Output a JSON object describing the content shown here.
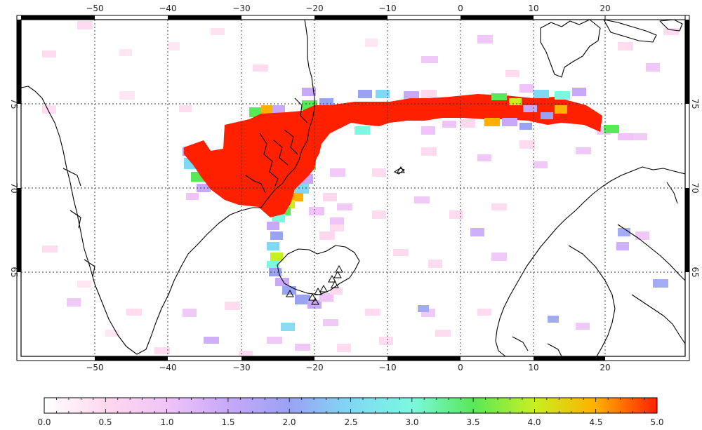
{
  "map": {
    "lon_labels_top": [
      "−50",
      "−40",
      "−30",
      "−20",
      "−10",
      "0",
      "10",
      "20"
    ],
    "lon_labels_bottom": [
      "−50",
      "−40",
      "−30",
      "−20",
      "−10",
      "0",
      "10",
      "20"
    ],
    "lat_labels_left": [
      "75",
      "70",
      "65"
    ],
    "lat_labels_right": [
      "75",
      "70",
      "65"
    ],
    "lon_values": [
      -50,
      -40,
      -30,
      -20,
      -10,
      0,
      10,
      20
    ],
    "lat_values": [
      75,
      70,
      65
    ],
    "extent": {
      "lon_min": -60,
      "lon_max": 31,
      "lat_min": 60,
      "lat_max": 80
    },
    "grid": true,
    "grid_style": "dotted",
    "colors": {
      "plume_max": "#ff2000",
      "land_outline": "#000000",
      "frame": "#000000"
    },
    "volcano_marker": "triangle-icon"
  },
  "colorbar": {
    "min": 0.0,
    "max": 5.0,
    "tick_values": [
      0.0,
      0.5,
      1.0,
      1.5,
      2.0,
      2.5,
      3.0,
      3.5,
      4.0,
      4.5,
      5.0
    ],
    "tick_labels": [
      "0.0",
      "0.5",
      "1.0",
      "1.5",
      "2.0",
      "2.5",
      "3.0",
      "3.5",
      "4.0",
      "4.5",
      "5.0"
    ],
    "colors": [
      "#ffffff",
      "#ffd8ee",
      "#f0c4f8",
      "#c8a8f8",
      "#9aa2f4",
      "#80d8f4",
      "#7cf8e0",
      "#58e858",
      "#c8f020",
      "#ffb000",
      "#ff2000"
    ]
  }
}
